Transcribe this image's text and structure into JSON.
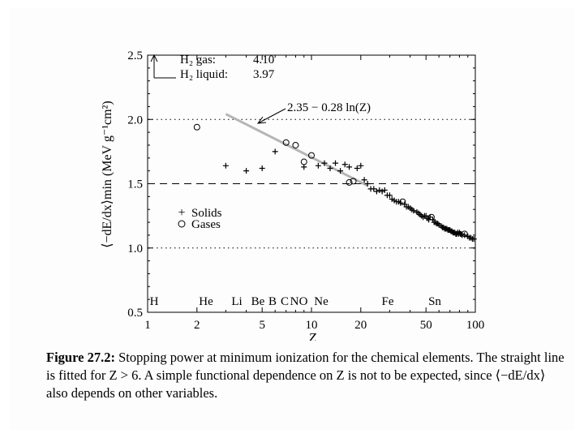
{
  "chart_data": {
    "type": "scatter",
    "xscale": "log",
    "xlim": [
      1,
      100
    ],
    "ylim": [
      0.5,
      2.5
    ],
    "xlabel": "Z",
    "ylabel": "⟨−dE/dx⟩min (MeV g⁻¹cm²)",
    "xticks": [
      1,
      2,
      5,
      10,
      20,
      50,
      100
    ],
    "yticks": [
      0.5,
      1.0,
      1.5,
      2.0,
      2.5
    ],
    "xtick_labels": [
      "1",
      "2",
      "5",
      "10",
      "20",
      "50",
      "100"
    ],
    "ytick_labels": [
      "0.5",
      "1.0",
      "1.5",
      "2.0",
      "2.5"
    ],
    "hlines": [
      {
        "y": 2.0,
        "style": "dotted"
      },
      {
        "y": 1.5,
        "style": "dashed"
      },
      {
        "y": 1.0,
        "style": "dotted"
      }
    ],
    "fit_line": {
      "label": "2.35 − 0.28 ln(Z)",
      "intercept": 2.35,
      "slope": -0.28,
      "xrange": [
        3,
        22
      ]
    },
    "h2_annotation": {
      "gas_label": "H₂ gas:",
      "gas_value": "4.10",
      "liquid_label": "H₂ liquid:",
      "liquid_value": "3.97"
    },
    "element_labels": [
      {
        "text": "H",
        "z": 1
      },
      {
        "text": "He",
        "z": 2
      },
      {
        "text": "Li",
        "z": 3
      },
      {
        "text": "Be",
        "z": 4
      },
      {
        "text": "B",
        "z": 5
      },
      {
        "text": "C",
        "z": 6
      },
      {
        "text": "N",
        "z": 7
      },
      {
        "text": "O",
        "z": 8
      },
      {
        "text": "Ne",
        "z": 10
      },
      {
        "text": "Fe",
        "z": 26
      },
      {
        "text": "Sn",
        "z": 50
      }
    ],
    "legend": {
      "position": "lower-left",
      "entries": [
        {
          "marker": "plus",
          "label": "Solids"
        },
        {
          "marker": "circle",
          "label": "Gases"
        }
      ]
    },
    "series": [
      {
        "name": "Solids",
        "marker": "plus",
        "points": [
          [
            3,
            1.64
          ],
          [
            4,
            1.6
          ],
          [
            5,
            1.62
          ],
          [
            6,
            1.75
          ],
          [
            9,
            1.63
          ],
          [
            11,
            1.64
          ],
          [
            12,
            1.66
          ],
          [
            13,
            1.62
          ],
          [
            14,
            1.66
          ],
          [
            15,
            1.6
          ],
          [
            16,
            1.65
          ],
          [
            17,
            1.63
          ],
          [
            19,
            1.62
          ],
          [
            20,
            1.64
          ],
          [
            21,
            1.53
          ],
          [
            22,
            1.5
          ],
          [
            23,
            1.46
          ],
          [
            24,
            1.46
          ],
          [
            25,
            1.44
          ],
          [
            26,
            1.45
          ],
          [
            27,
            1.44
          ],
          [
            28,
            1.45
          ],
          [
            29,
            1.41
          ],
          [
            30,
            1.41
          ],
          [
            31,
            1.38
          ],
          [
            32,
            1.37
          ],
          [
            33,
            1.36
          ],
          [
            34,
            1.36
          ],
          [
            35,
            1.35
          ],
          [
            37,
            1.34
          ],
          [
            38,
            1.32
          ],
          [
            39,
            1.32
          ],
          [
            40,
            1.31
          ],
          [
            41,
            1.3
          ],
          [
            42,
            1.29
          ],
          [
            44,
            1.28
          ],
          [
            45,
            1.27
          ],
          [
            46,
            1.26
          ],
          [
            47,
            1.25
          ],
          [
            48,
            1.24
          ],
          [
            49,
            1.25
          ],
          [
            50,
            1.25
          ],
          [
            51,
            1.23
          ],
          [
            52,
            1.22
          ],
          [
            53,
            1.24
          ],
          [
            55,
            1.22
          ],
          [
            56,
            1.2
          ],
          [
            57,
            1.2
          ],
          [
            58,
            1.19
          ],
          [
            59,
            1.19
          ],
          [
            60,
            1.18
          ],
          [
            62,
            1.17
          ],
          [
            63,
            1.16
          ],
          [
            64,
            1.16
          ],
          [
            65,
            1.15
          ],
          [
            66,
            1.15
          ],
          [
            67,
            1.15
          ],
          [
            68,
            1.14
          ],
          [
            69,
            1.14
          ],
          [
            70,
            1.14
          ],
          [
            71,
            1.13
          ],
          [
            72,
            1.13
          ],
          [
            73,
            1.12
          ],
          [
            74,
            1.12
          ],
          [
            75,
            1.12
          ],
          [
            76,
            1.11
          ],
          [
            77,
            1.11
          ],
          [
            78,
            1.12
          ],
          [
            79,
            1.11
          ],
          [
            80,
            1.12
          ],
          [
            81,
            1.11
          ],
          [
            82,
            1.11
          ],
          [
            83,
            1.1
          ],
          [
            86,
            1.1
          ],
          [
            90,
            1.09
          ],
          [
            92,
            1.08
          ],
          [
            94,
            1.08
          ],
          [
            96,
            1.07
          ],
          [
            98,
            1.07
          ]
        ]
      },
      {
        "name": "Gases",
        "marker": "circle",
        "points": [
          [
            2,
            1.94
          ],
          [
            7,
            1.82
          ],
          [
            8,
            1.8
          ],
          [
            9,
            1.67
          ],
          [
            10,
            1.72
          ],
          [
            17,
            1.51
          ],
          [
            18,
            1.52
          ],
          [
            36,
            1.36
          ],
          [
            54,
            1.24
          ],
          [
            86,
            1.11
          ]
        ]
      }
    ]
  },
  "caption": {
    "label": "Figure 27.2:",
    "text": "Stopping power at minimum ionization for the chemical elements. The straight line is fitted for Z > 6. A simple functional dependence on Z is not to be expected, since ⟨−dE/dx⟩ also depends on other variables."
  }
}
